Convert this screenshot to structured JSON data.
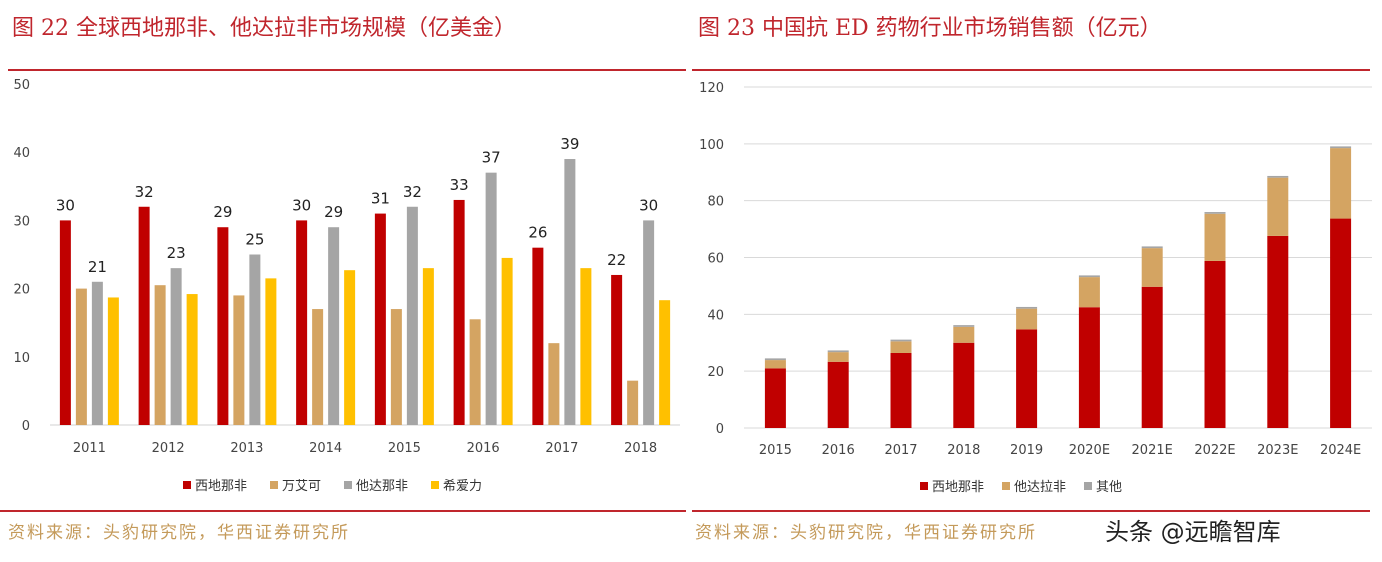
{
  "left": {
    "title": "图 22 全球西地那非、他达拉非市场规模（亿美金）",
    "source": "资料来源：头豹研究院，华西证券研究所"
  },
  "right": {
    "title": "图 23 中国抗 ED 药物行业市场销售额（亿元）",
    "source": "资料来源：头豹研究院，华西证券研究所"
  },
  "watermark": "头条 @远瞻智库",
  "chart_data": [
    {
      "type": "bar",
      "title": "图 22 全球西地那非、他达拉非市场规模（亿美金）",
      "categories": [
        "2011",
        "2012",
        "2013",
        "2014",
        "2015",
        "2016",
        "2017",
        "2018"
      ],
      "ylim": [
        0,
        50
      ],
      "yticks": [
        0,
        10,
        20,
        30,
        40,
        50
      ],
      "grid": false,
      "legend": "bottom",
      "series": [
        {
          "name": "西地那非",
          "color": "#c00000",
          "values": [
            30,
            32,
            29,
            30,
            31,
            33,
            26,
            22
          ],
          "labeled": true
        },
        {
          "name": "万艾可",
          "color": "#d4a462",
          "values": [
            20,
            20.5,
            19,
            17,
            17,
            15.5,
            12,
            6.5
          ],
          "labeled": false
        },
        {
          "name": "他达那非",
          "color": "#a5a5a5",
          "values": [
            21,
            23,
            25,
            29,
            32,
            37,
            39,
            30
          ],
          "labeled": true
        },
        {
          "name": "希爱力",
          "color": "#ffc000",
          "values": [
            18.7,
            19.2,
            21.5,
            22.7,
            23,
            24.5,
            23,
            18.3
          ],
          "labeled": false
        }
      ]
    },
    {
      "type": "bar",
      "stacked": true,
      "title": "图 23 中国抗 ED 药物行业市场销售额（亿元）",
      "categories": [
        "2015",
        "2016",
        "2017",
        "2018",
        "2019",
        "2020E",
        "2021E",
        "2022E",
        "2023E",
        "2024E"
      ],
      "ylim": [
        0,
        120
      ],
      "yticks": [
        0,
        20,
        40,
        60,
        80,
        100,
        120
      ],
      "grid": true,
      "legend": "bottom",
      "series": [
        {
          "name": "西地那非",
          "color": "#c00000",
          "values": [
            21,
            23.3,
            26.4,
            30,
            34.7,
            42.5,
            49.7,
            58.8,
            67.6,
            73.7
          ]
        },
        {
          "name": "他达拉非",
          "color": "#d4a462",
          "values": [
            2.9,
            3.4,
            4.1,
            5.6,
            7.3,
            10.6,
            13.6,
            16.6,
            20.5,
            24.8
          ]
        },
        {
          "name": "其他",
          "color": "#a5a5a5",
          "values": [
            0.6,
            0.6,
            0.6,
            0.6,
            0.6,
            0.6,
            0.6,
            0.6,
            0.6,
            0.6
          ]
        }
      ]
    }
  ]
}
